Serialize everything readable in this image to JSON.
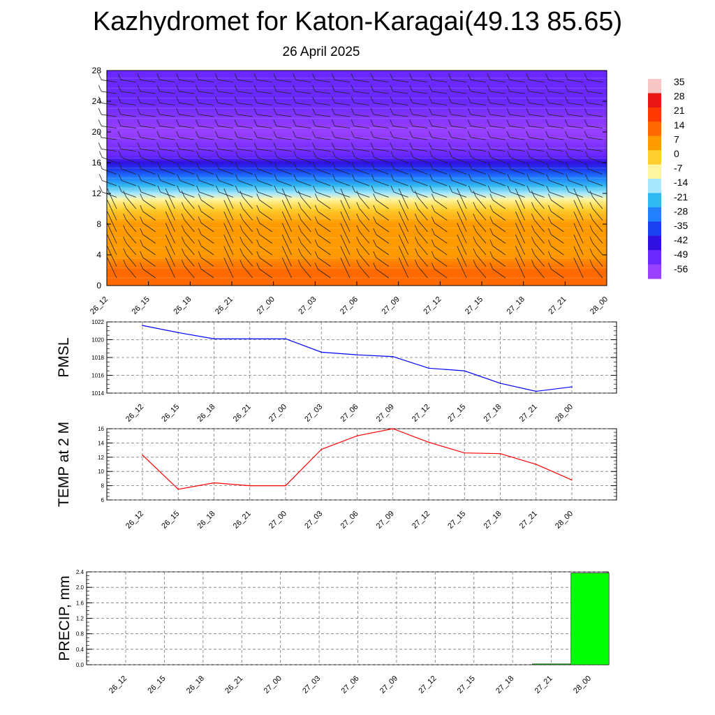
{
  "title": "Kazhydromet for Katon-Karagai(49.13 85.65)",
  "subtitle": "26 April 2025",
  "chart_data": [
    {
      "type": "heatmap",
      "name": "cross-section",
      "x_categories": [
        "26_12",
        "26_15",
        "26_18",
        "26_21",
        "27_00",
        "27_03",
        "27_06",
        "27_09",
        "27_12",
        "27_15",
        "27_18",
        "27_21",
        "28_00"
      ],
      "y_ticks": [
        0,
        4,
        8,
        12,
        16,
        20,
        24,
        28
      ],
      "ylim": [
        0,
        28
      ],
      "colorbar_labels": [
        "35",
        "28",
        "21",
        "14",
        "7",
        "0",
        "-7",
        "-14",
        "-21",
        "-28",
        "-35",
        "-42",
        "-49",
        "-56"
      ],
      "colorbar_colors": [
        "#f7c7c7",
        "#e81515",
        "#ff3a00",
        "#ff6a00",
        "#ff9a00",
        "#ffcf30",
        "#fff5a0",
        "#a8e8ff",
        "#30b8f0",
        "#2080ff",
        "#1a40f0",
        "#3010e0",
        "#6a28ff",
        "#9a40ff"
      ],
      "temperature_profile": [
        {
          "height": 0,
          "value": 12
        },
        {
          "height": 2,
          "value": 9
        },
        {
          "height": 4,
          "value": 6
        },
        {
          "height": 6,
          "value": 3
        },
        {
          "height": 8,
          "value": 0
        },
        {
          "height": 10,
          "value": -5
        },
        {
          "height": 11.2,
          "value": -9
        },
        {
          "height": 12,
          "value": -18
        },
        {
          "height": 13,
          "value": -25
        },
        {
          "height": 14,
          "value": -32
        },
        {
          "height": 15,
          "value": -40
        },
        {
          "height": 16,
          "value": -47
        },
        {
          "height": 17,
          "value": -53
        },
        {
          "height": 20,
          "value": -58
        },
        {
          "height": 24,
          "value": -56
        },
        {
          "height": 28,
          "value": -53
        }
      ]
    },
    {
      "type": "line",
      "name": "PMSL",
      "ylabel": "PMSL",
      "categories": [
        "26_12",
        "26_15",
        "26_18",
        "26_21",
        "27_00",
        "27_03",
        "27_06",
        "27_09",
        "27_12",
        "27_15",
        "27_18",
        "27_21",
        "28_00"
      ],
      "values": [
        1021.6,
        1020.8,
        1020.1,
        1020.1,
        1020.1,
        1018.6,
        1018.3,
        1018.1,
        1016.8,
        1016.5,
        1015.1,
        1014.2,
        1014.7
      ],
      "ylim": [
        1014,
        1022
      ],
      "y_ticks": [
        1014,
        1016,
        1018,
        1020,
        1022
      ],
      "color": "#0000ff"
    },
    {
      "type": "line",
      "name": "TEMP at 2 M",
      "ylabel": "TEMP at 2 M",
      "categories": [
        "26_12",
        "26_15",
        "26_18",
        "26_21",
        "27_00",
        "27_03",
        "27_06",
        "27_09",
        "27_12",
        "27_15",
        "27_18",
        "27_21",
        "28_00"
      ],
      "values": [
        12.3,
        7.5,
        8.4,
        8.0,
        8.0,
        13.1,
        15.0,
        16.0,
        14.1,
        12.6,
        12.5,
        11.0,
        8.8
      ],
      "ylim": [
        6,
        16
      ],
      "y_ticks": [
        6,
        8,
        10,
        12,
        14,
        16
      ],
      "color": "#ff0000"
    },
    {
      "type": "bar",
      "name": "PRECIP, mm",
      "ylabel": "PRECIP, mm",
      "categories": [
        "26_12",
        "26_15",
        "26_18",
        "26_21",
        "27_00",
        "27_03",
        "27_06",
        "27_09",
        "27_12",
        "27_15",
        "27_18",
        "27_21",
        "28_00"
      ],
      "values": [
        0,
        0,
        0,
        0,
        0,
        0,
        0,
        0,
        0,
        0,
        0,
        0.02,
        2.37
      ],
      "ylim": [
        0,
        2.4
      ],
      "y_ticks": [
        "0.0",
        "0.4",
        "0.8",
        "1.2",
        "1.6",
        "2.0",
        "2.4"
      ],
      "color": "#00ff00"
    }
  ]
}
